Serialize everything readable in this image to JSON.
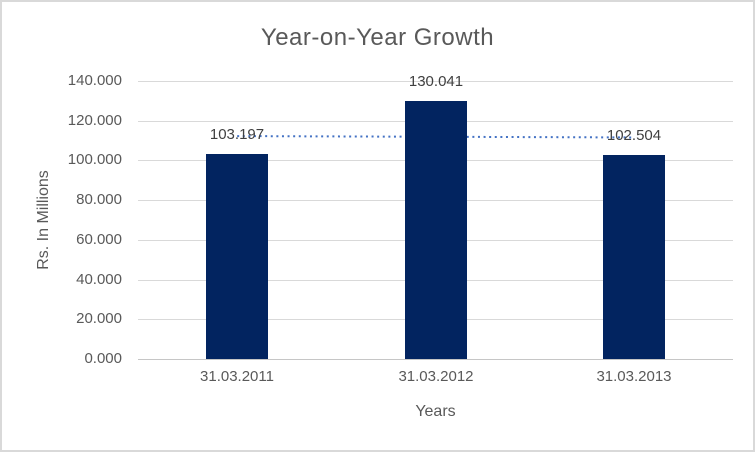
{
  "window": {
    "background": "#ffffff",
    "border_color": "#d9d9d9"
  },
  "chart_data": {
    "type": "bar",
    "title": "Year-on-Year Growth",
    "xlabel": "Years",
    "ylabel": "Rs. In Millions",
    "categories": [
      "31.03.2011",
      "31.03.2012",
      "31.03.2013"
    ],
    "values": [
      103.197,
      130.041,
      102.504
    ],
    "data_labels": [
      "103.197",
      "130.041",
      "102.504"
    ],
    "ylim": [
      0,
      140
    ],
    "ytick_step": 20,
    "ytick_labels": [
      "0.000",
      "20.000",
      "40.000",
      "60.000",
      "80.000",
      "100.000",
      "120.000",
      "140.000"
    ],
    "grid": true,
    "legend": "none",
    "colors": {
      "bar": "#022460",
      "trendline": "#4472c4",
      "gridline": "#d9d9d9",
      "axis_line": "#c6c6c6",
      "axis_text": "#595959",
      "data_label_text": "#404040",
      "title_text": "#595959"
    },
    "trendline": {
      "style": "dotted",
      "color": "#4472c4",
      "values": [
        112.26,
        111.91,
        111.57
      ]
    }
  }
}
